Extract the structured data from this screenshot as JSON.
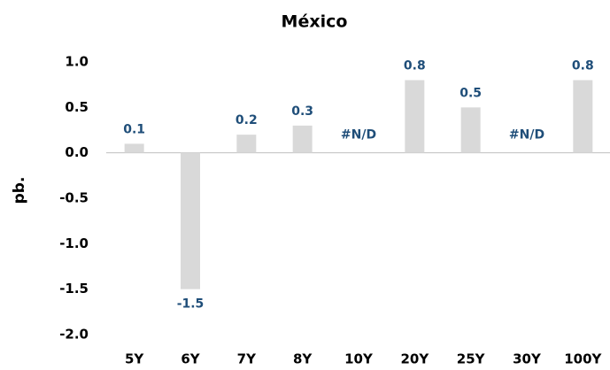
{
  "chart_data": {
    "type": "bar",
    "title": "México",
    "y_label": "pb.",
    "categories": [
      "5Y",
      "6Y",
      "7Y",
      "8Y",
      "10Y",
      "20Y",
      "25Y",
      "30Y",
      "100Y"
    ],
    "values": [
      0.1,
      -1.5,
      0.2,
      0.3,
      null,
      0.8,
      0.5,
      null,
      0.8
    ],
    "value_labels": [
      "0.1",
      "-1.5",
      "0.2",
      "0.3",
      "#N/D",
      "0.8",
      "0.5",
      "#N/D",
      "0.8"
    ],
    "color": "#d9d9d9",
    "ylim": [
      -2,
      1
    ],
    "yticks": [
      {
        "value": 1,
        "label": "1.0"
      },
      0.5,
      {
        "value": 0,
        "label": "0.0"
      },
      -0.5,
      {
        "value": -1,
        "label": "-1.0"
      },
      -1.5,
      {
        "value": -2,
        "label": "-2.0"
      }
    ],
    "grid": false
  }
}
